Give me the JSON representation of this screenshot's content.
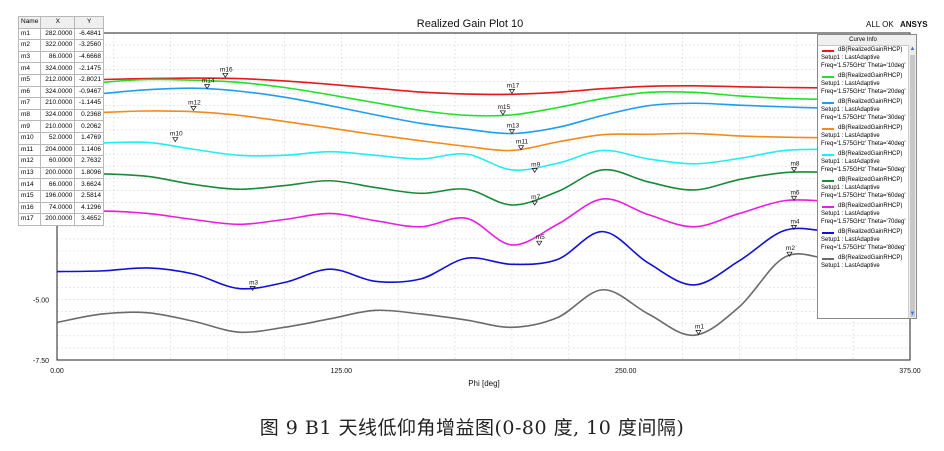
{
  "header": {
    "allok": "ALL OK",
    "brand": "ANSYS"
  },
  "marker_table": {
    "columns": [
      "Name",
      "X",
      "Y"
    ],
    "rows": [
      [
        "m1",
        "282.0000",
        "-6.4841"
      ],
      [
        "m2",
        "322.0000",
        "-3.2560"
      ],
      [
        "m3",
        "86.0000",
        "-4.6668"
      ],
      [
        "m4",
        "324.0000",
        "-2.1475"
      ],
      [
        "m5",
        "212.0000",
        "-2.8021"
      ],
      [
        "m6",
        "324.0000",
        "-0.9467"
      ],
      [
        "m7",
        "210.0000",
        "-1.1445"
      ],
      [
        "m8",
        "324.0000",
        "0.2368"
      ],
      [
        "m9",
        "210.0000",
        "0.2062"
      ],
      [
        "m10",
        "52.0000",
        "1.4769"
      ],
      [
        "m11",
        "204.0000",
        "1.1406"
      ],
      [
        "m12",
        "60.0000",
        "2.7632"
      ],
      [
        "m13",
        "200.0000",
        "1.8096"
      ],
      [
        "m14",
        "66.0000",
        "3.6624"
      ],
      [
        "m15",
        "196.0000",
        "2.5814"
      ],
      [
        "m16",
        "74.0000",
        "4.1296"
      ],
      [
        "m17",
        "200.0000",
        "3.4652"
      ]
    ]
  },
  "legend": {
    "title": "Curve Info",
    "items": [
      {
        "name": "dB(RealizedGainRHCP)",
        "line2": "Setup1 : LastAdaptive",
        "line3": "Freq='1.575GHz' Theta='10deg'",
        "color": "#e8191c"
      },
      {
        "name": "dB(RealizedGainRHCP)",
        "line2": "Setup1 : LastAdaptive",
        "line3": "Freq='1.575GHz' Theta='20deg'",
        "color": "#22e02a"
      },
      {
        "name": "dB(RealizedGainRHCP)",
        "line2": "Setup1 : LastAdaptive",
        "line3": "Freq='1.575GHz' Theta='30deg'",
        "color": "#1e9ef2"
      },
      {
        "name": "dB(RealizedGainRHCP)",
        "line2": "Setup1 : LastAdaptive",
        "line3": "Freq='1.575GHz' Theta='40deg'",
        "color": "#f28a1e"
      },
      {
        "name": "dB(RealizedGainRHCP)",
        "line2": "Setup1 : LastAdaptive",
        "line3": "Freq='1.575GHz' Theta='50deg'",
        "color": "#22eef0"
      },
      {
        "name": "dB(RealizedGainRHCP)",
        "line2": "Setup1 : LastAdaptive",
        "line3": "Freq='1.575GHz' Theta='60deg'",
        "color": "#1a8a3a"
      },
      {
        "name": "dB(RealizedGainRHCP)",
        "line2": "Setup1 : LastAdaptive",
        "line3": "Freq='1.575GHz' Theta='70deg'",
        "color": "#e81ee0"
      },
      {
        "name": "dB(RealizedGainRHCP)",
        "line2": "Setup1 : LastAdaptive",
        "line3": "Freq='1.575GHz' Theta='80deg'",
        "color": "#1010d8"
      },
      {
        "name": "dB(RealizedGainRHCP)",
        "line2": "Setup1 : LastAdaptive",
        "line3": "",
        "color": "#6b6b6b"
      }
    ]
  },
  "caption": "图 9 B1 天线低仰角增益图(0-80 度, 10 度间隔)",
  "chart_data": {
    "type": "line",
    "title": "Realized Gain Plot 10",
    "xlabel": "Phi [deg]",
    "ylabel": "",
    "xlim": [
      0,
      375
    ],
    "ylim": [
      -7.5,
      6
    ],
    "xticks": [
      0,
      125,
      250,
      375
    ],
    "xtick_labels": [
      "0.00",
      "125.00",
      "250.00",
      "375.00"
    ],
    "yticks": [
      -7.5,
      -5
    ],
    "ytick_labels": [
      "-7.50",
      "-5.00"
    ],
    "grid": true,
    "legend_position": "right",
    "x": [
      0,
      20,
      40,
      60,
      80,
      100,
      120,
      140,
      160,
      180,
      200,
      220,
      240,
      260,
      280,
      300,
      320,
      340,
      360
    ],
    "series": [
      {
        "name": "dB(RealizedGainRHCP)",
        "color": "#e8191c",
        "values": [
          4.02,
          4.08,
          4.12,
          4.14,
          4.12,
          4.02,
          3.88,
          3.72,
          3.56,
          3.48,
          3.47,
          3.55,
          3.7,
          3.8,
          3.82,
          3.78,
          3.75,
          3.73,
          3.74
        ]
      },
      {
        "name": "dB(RealizedGainRHCP)",
        "color": "#22e02a",
        "values": [
          3.72,
          3.96,
          4.08,
          4.05,
          3.96,
          3.75,
          3.45,
          3.12,
          2.8,
          2.6,
          2.62,
          2.92,
          3.3,
          3.55,
          3.55,
          3.4,
          3.3,
          3.26,
          3.28
        ]
      },
      {
        "name": "dB(RealizedGainRHCP)",
        "color": "#1e9ef2",
        "values": [
          3.28,
          3.5,
          3.66,
          3.72,
          3.6,
          3.35,
          3.0,
          2.62,
          2.27,
          2.03,
          1.85,
          2.1,
          2.6,
          3.0,
          3.1,
          3.02,
          2.95,
          2.9,
          2.92
        ]
      },
      {
        "name": "dB(RealizedGainRHCP)",
        "color": "#f28a1e",
        "values": [
          2.6,
          2.72,
          2.78,
          2.75,
          2.6,
          2.35,
          2.08,
          1.8,
          1.55,
          1.32,
          1.15,
          1.5,
          1.8,
          1.82,
          1.85,
          1.75,
          1.7,
          1.68,
          1.7
        ]
      },
      {
        "name": "dB(RealizedGainRHCP)",
        "color": "#22eef0",
        "values": [
          1.38,
          1.46,
          1.48,
          1.2,
          0.95,
          0.95,
          1.1,
          0.95,
          0.8,
          1.0,
          0.35,
          0.62,
          1.15,
          0.8,
          0.6,
          0.82,
          1.15,
          1.2,
          1.18
        ]
      },
      {
        "name": "dB(RealizedGainRHCP)",
        "color": "#1a8a3a",
        "values": [
          0.15,
          0.18,
          0.08,
          -0.25,
          -0.45,
          -0.3,
          -0.1,
          -0.38,
          -0.62,
          -0.45,
          -1.1,
          -0.55,
          0.35,
          -0.15,
          -0.48,
          -0.05,
          0.24,
          0.25,
          0.22
        ]
      },
      {
        "name": "dB(RealizedGainRHCP)",
        "color": "#e81ee0",
        "values": [
          -1.4,
          -1.35,
          -1.45,
          -1.7,
          -1.9,
          -1.7,
          -1.45,
          -1.75,
          -2.0,
          -1.65,
          -2.75,
          -1.9,
          -0.85,
          -1.5,
          -2.0,
          -1.45,
          -0.92,
          -0.95,
          -1.0
        ]
      },
      {
        "name": "dB(RealizedGainRHCP)",
        "color": "#1010d8",
        "values": [
          -3.85,
          -3.82,
          -3.7,
          -3.95,
          -4.55,
          -4.3,
          -3.75,
          -4.25,
          -4.15,
          -3.3,
          -3.55,
          -3.35,
          -2.2,
          -3.5,
          -4.4,
          -3.4,
          -2.15,
          -2.2,
          -2.35
        ]
      },
      {
        "name": "dB(RealizedGainRHCP)",
        "color": "#6b6b6b",
        "values": [
          -5.95,
          -5.6,
          -5.55,
          -5.9,
          -6.35,
          -6.15,
          -5.8,
          -5.45,
          -5.6,
          -5.85,
          -6.15,
          -5.75,
          -4.6,
          -5.6,
          -6.48,
          -5.3,
          -3.25,
          -3.35,
          -3.6
        ]
      }
    ],
    "markers": [
      {
        "label": "m1",
        "series": 8,
        "x": 282,
        "y": -6.4841
      },
      {
        "label": "m2",
        "series": 8,
        "x": 322,
        "y": -3.256
      },
      {
        "label": "m3",
        "series": 7,
        "x": 86,
        "y": -4.6668
      },
      {
        "label": "m4",
        "series": 7,
        "x": 324,
        "y": -2.1475
      },
      {
        "label": "m5",
        "series": 6,
        "x": 212,
        "y": -2.8021
      },
      {
        "label": "m6",
        "series": 6,
        "x": 324,
        "y": -0.9467
      },
      {
        "label": "m7",
        "series": 5,
        "x": 210,
        "y": -1.1445
      },
      {
        "label": "m8",
        "series": 5,
        "x": 324,
        "y": 0.2368
      },
      {
        "label": "m9",
        "series": 4,
        "x": 210,
        "y": 0.2062
      },
      {
        "label": "m10",
        "series": 4,
        "x": 52,
        "y": 1.4769
      },
      {
        "label": "m11",
        "series": 3,
        "x": 204,
        "y": 1.1406
      },
      {
        "label": "m12",
        "series": 3,
        "x": 60,
        "y": 2.7632
      },
      {
        "label": "m13",
        "series": 2,
        "x": 200,
        "y": 1.8096
      },
      {
        "label": "m14",
        "series": 2,
        "x": 66,
        "y": 3.6624
      },
      {
        "label": "m15",
        "series": 1,
        "x": 196,
        "y": 2.5814
      },
      {
        "label": "m16",
        "series": 1,
        "x": 74,
        "y": 4.1296
      },
      {
        "label": "m17",
        "series": 0,
        "x": 200,
        "y": 3.4652
      }
    ]
  }
}
